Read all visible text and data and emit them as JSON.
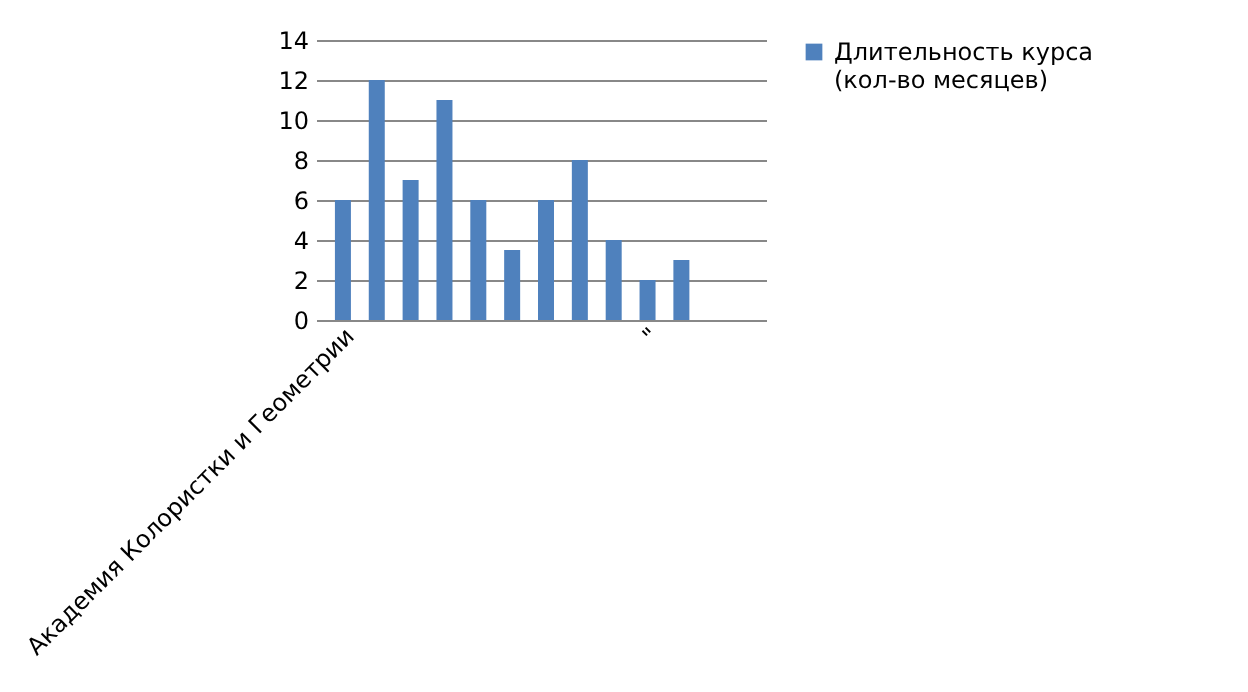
{
  "chart_data": {
    "type": "bar",
    "categories": [
      "Академия Колористки и Геометрии",
      null,
      null,
      null,
      null,
      null,
      null,
      null,
      null,
      "\"",
      null,
      null,
      null
    ],
    "series": [
      {
        "name": "Длительность курса (кол-во месяцев)",
        "color": "#4f81bd",
        "values": [
          6,
          12,
          7,
          11,
          6,
          3.5,
          6,
          8,
          4,
          2,
          3,
          null,
          null
        ]
      }
    ],
    "ylim": [
      0,
      14
    ],
    "yticks": [
      0,
      2,
      4,
      6,
      8,
      10,
      12,
      14
    ],
    "grid": "y",
    "legend": "right"
  }
}
